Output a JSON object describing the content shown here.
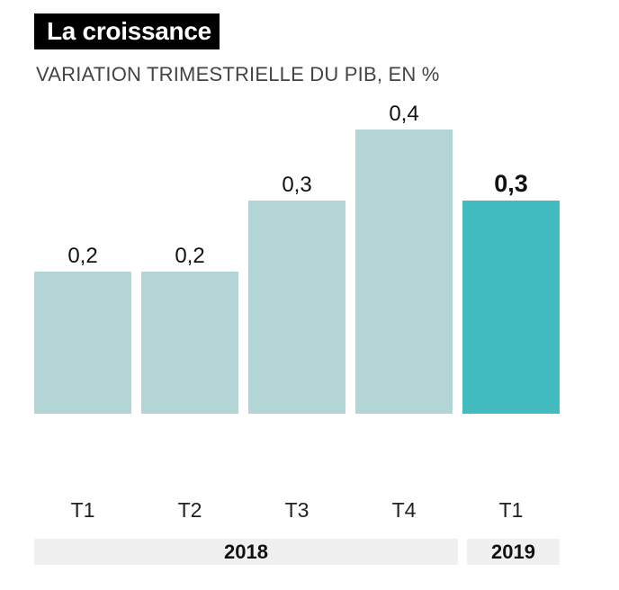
{
  "header": {
    "title": "La croissance",
    "subtitle": "VARIATION TRIMESTRIELLE DU PIB, EN %"
  },
  "colors": {
    "bar": "#b3d5d6",
    "highlight": "#42bcc1"
  },
  "years": [
    "2018",
    "2019"
  ],
  "chart_data": {
    "type": "bar",
    "title": "La croissance",
    "subtitle": "VARIATION TRIMESTRIELLE DU PIB, EN %",
    "categories": [
      "T1",
      "T2",
      "T3",
      "T4",
      "T1"
    ],
    "values": [
      0.2,
      0.2,
      0.3,
      0.4,
      0.3
    ],
    "value_labels": [
      "0,2",
      "0,2",
      "0,3",
      "0,4",
      "0,3"
    ],
    "groups": [
      "2018",
      "2018",
      "2018",
      "2018",
      "2019"
    ],
    "highlight_index": 4,
    "ylim": [
      0,
      0.4
    ],
    "grid": false,
    "xlabel": "",
    "ylabel": ""
  }
}
